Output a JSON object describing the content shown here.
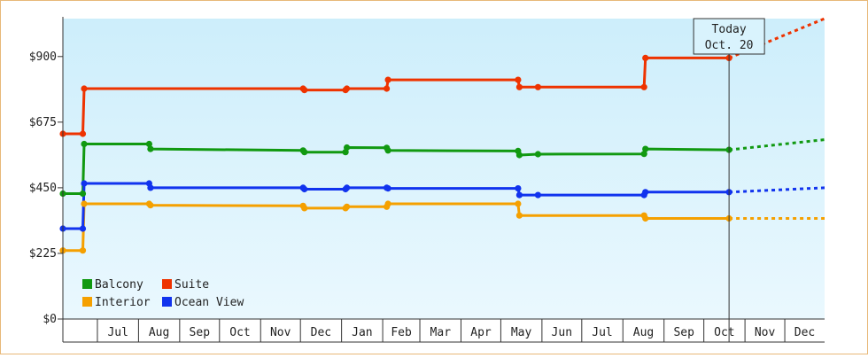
{
  "chart_data": {
    "type": "line",
    "title": "",
    "xlabel": "",
    "ylabel": "",
    "ylim": [
      0,
      1030
    ],
    "y_ticks": [
      {
        "value": 0,
        "label": "$0"
      },
      {
        "value": 225,
        "label": "$225"
      },
      {
        "value": 450,
        "label": "$450"
      },
      {
        "value": 675,
        "label": "$675"
      },
      {
        "value": 900,
        "label": "$900"
      }
    ],
    "x_domain": [
      "2020-06-05",
      "2021-12-31"
    ],
    "x_ticks": [
      {
        "date": "2020-07-01",
        "label": "Jul"
      },
      {
        "date": "2020-08-01",
        "label": "Aug"
      },
      {
        "date": "2020-09-01",
        "label": "Sep"
      },
      {
        "date": "2020-10-01",
        "label": "Oct"
      },
      {
        "date": "2020-11-01",
        "label": "Nov"
      },
      {
        "date": "2020-12-01",
        "label": "Dec"
      },
      {
        "date": "2021-01-01",
        "label": "Jan"
      },
      {
        "date": "2021-02-01",
        "label": "Feb"
      },
      {
        "date": "2021-03-01",
        "label": "Mar"
      },
      {
        "date": "2021-04-01",
        "label": "Apr"
      },
      {
        "date": "2021-05-01",
        "label": "May"
      },
      {
        "date": "2021-06-01",
        "label": "Jun"
      },
      {
        "date": "2021-07-01",
        "label": "Jul"
      },
      {
        "date": "2021-08-01",
        "label": "Aug"
      },
      {
        "date": "2021-09-01",
        "label": "Sep"
      },
      {
        "date": "2021-10-01",
        "label": "Oct"
      },
      {
        "date": "2021-11-01",
        "label": "Nov"
      },
      {
        "date": "2021-12-01",
        "label": "Dec"
      }
    ],
    "today": {
      "date": "2021-10-20",
      "line1": "Today",
      "line2": "Oct. 20"
    },
    "legend_position": "bottom-left",
    "series": [
      {
        "name": "Balcony",
        "color": "#119911",
        "points": [
          [
            "2020-06-05",
            430
          ],
          [
            "2020-06-20",
            430
          ],
          [
            "2020-06-21",
            600
          ],
          [
            "2020-08-09",
            600
          ],
          [
            "2020-08-10",
            583
          ],
          [
            "2020-12-03",
            578
          ],
          [
            "2020-12-04",
            572
          ],
          [
            "2021-01-04",
            572
          ],
          [
            "2021-01-05",
            588
          ],
          [
            "2021-02-04",
            587
          ],
          [
            "2021-02-05",
            578
          ],
          [
            "2021-05-14",
            576
          ],
          [
            "2021-05-15",
            562
          ],
          [
            "2021-05-29",
            565
          ],
          [
            "2021-08-17",
            566
          ],
          [
            "2021-08-18",
            583
          ],
          [
            "2021-10-20",
            580
          ]
        ],
        "forecast": [
          [
            "2021-10-20",
            580
          ],
          [
            "2021-12-31",
            615
          ]
        ]
      },
      {
        "name": "Suite",
        "color": "#ee3300",
        "points": [
          [
            "2020-06-05",
            635
          ],
          [
            "2020-06-20",
            635
          ],
          [
            "2020-06-21",
            790
          ],
          [
            "2020-12-03",
            790
          ],
          [
            "2020-12-04",
            785
          ],
          [
            "2021-01-04",
            785
          ],
          [
            "2021-01-05",
            790
          ],
          [
            "2021-02-04",
            790
          ],
          [
            "2021-02-05",
            820
          ],
          [
            "2021-05-14",
            820
          ],
          [
            "2021-05-15",
            795
          ],
          [
            "2021-05-29",
            795
          ],
          [
            "2021-08-17",
            795
          ],
          [
            "2021-08-18",
            895
          ],
          [
            "2021-10-20",
            895
          ]
        ],
        "forecast": [
          [
            "2021-10-20",
            895
          ],
          [
            "2021-12-31",
            1030
          ]
        ]
      },
      {
        "name": "Interior",
        "color": "#f5a000",
        "points": [
          [
            "2020-06-05",
            235
          ],
          [
            "2020-06-20",
            235
          ],
          [
            "2020-06-21",
            395
          ],
          [
            "2020-08-09",
            395
          ],
          [
            "2020-08-10",
            390
          ],
          [
            "2020-12-03",
            388
          ],
          [
            "2020-12-04",
            380
          ],
          [
            "2021-01-04",
            380
          ],
          [
            "2021-01-05",
            385
          ],
          [
            "2021-02-04",
            385
          ],
          [
            "2021-02-05",
            395
          ],
          [
            "2021-05-14",
            395
          ],
          [
            "2021-05-15",
            355
          ],
          [
            "2021-08-17",
            355
          ],
          [
            "2021-08-18",
            345
          ],
          [
            "2021-10-20",
            345
          ]
        ],
        "forecast": [
          [
            "2021-10-20",
            345
          ],
          [
            "2021-12-31",
            345
          ]
        ]
      },
      {
        "name": "Ocean View",
        "color": "#1133ee",
        "points": [
          [
            "2020-06-05",
            310
          ],
          [
            "2020-06-20",
            310
          ],
          [
            "2020-06-21",
            465
          ],
          [
            "2020-08-09",
            465
          ],
          [
            "2020-08-10",
            450
          ],
          [
            "2020-12-03",
            450
          ],
          [
            "2020-12-04",
            445
          ],
          [
            "2021-01-04",
            445
          ],
          [
            "2021-01-05",
            450
          ],
          [
            "2021-02-04",
            450
          ],
          [
            "2021-02-05",
            448
          ],
          [
            "2021-05-14",
            448
          ],
          [
            "2021-05-15",
            425
          ],
          [
            "2021-05-29",
            425
          ],
          [
            "2021-08-17",
            425
          ],
          [
            "2021-08-18",
            435
          ],
          [
            "2021-10-20",
            435
          ]
        ],
        "forecast": [
          [
            "2021-10-20",
            435
          ],
          [
            "2021-12-31",
            450
          ]
        ]
      }
    ],
    "markers": {
      "Balcony": [
        "2020-06-05",
        "2020-06-20",
        "2020-06-21",
        "2020-08-09",
        "2020-08-10",
        "2020-12-03",
        "2020-12-04",
        "2021-01-04",
        "2021-01-05",
        "2021-02-04",
        "2021-02-05",
        "2021-05-14",
        "2021-05-15",
        "2021-05-29",
        "2021-08-17",
        "2021-08-18",
        "2021-10-20"
      ],
      "Suite": [
        "2020-06-05",
        "2020-06-20",
        "2020-06-21",
        "2020-12-03",
        "2020-12-04",
        "2021-01-04",
        "2021-01-05",
        "2021-02-04",
        "2021-02-05",
        "2021-05-14",
        "2021-05-15",
        "2021-05-29",
        "2021-08-17",
        "2021-08-18",
        "2021-10-20"
      ],
      "Interior": [
        "2020-06-05",
        "2020-06-20",
        "2020-06-21",
        "2020-08-09",
        "2020-08-10",
        "2020-12-03",
        "2020-12-04",
        "2021-01-04",
        "2021-01-05",
        "2021-02-04",
        "2021-02-05",
        "2021-05-14",
        "2021-05-15",
        "2021-08-17",
        "2021-08-18",
        "2021-10-20"
      ],
      "Ocean View": [
        "2020-06-05",
        "2020-06-20",
        "2020-06-21",
        "2020-08-09",
        "2020-08-10",
        "2020-12-03",
        "2020-12-04",
        "2021-01-04",
        "2021-01-05",
        "2021-02-04",
        "2021-02-05",
        "2021-05-14",
        "2021-05-15",
        "2021-05-29",
        "2021-08-17",
        "2021-08-18",
        "2021-10-20"
      ]
    },
    "legend_order": [
      "Balcony",
      "Suite",
      "Interior",
      "Ocean View"
    ],
    "colors": {
      "background_top": "#cdeefb",
      "background_bottom": "#eaf8fe",
      "frame_border": "#e8b878"
    }
  }
}
